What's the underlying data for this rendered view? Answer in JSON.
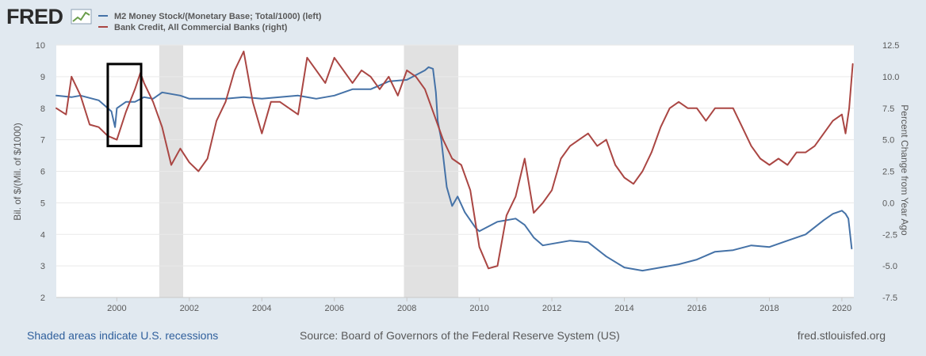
{
  "brand": {
    "name": "FRED"
  },
  "colors": {
    "background": "#e1e9f0",
    "plot_background": "#ffffff",
    "recession": "#e1e1e1",
    "grid": "#e9e9e9",
    "left_series": "#4572a7",
    "right_series": "#aa4643",
    "annotation_box": "#000000"
  },
  "footer": {
    "recessions_note": "Shaded areas indicate U.S. recessions",
    "source": "Source: Board of Governors of the Federal Reserve System (US)",
    "site": "fred.stlouisfed.org"
  },
  "chart_data": {
    "type": "line",
    "title": "",
    "legend": [
      {
        "name": "M2 Money Stock/(Monetary Base; Total/1000) (left)",
        "color": "#4572a7"
      },
      {
        "name": "Bank Credit, All Commercial Banks (right)",
        "color": "#aa4643"
      }
    ],
    "xlim": [
      1998.33,
      2020.33
    ],
    "x_ticks": [
      2000,
      2002,
      2004,
      2006,
      2008,
      2010,
      2012,
      2014,
      2016,
      2018,
      2020
    ],
    "y_left": {
      "label": "Bil. of $/(Mil. of $/1000)",
      "lim": [
        2,
        10
      ],
      "ticks": [
        2,
        3,
        4,
        5,
        6,
        7,
        8,
        9,
        10
      ],
      "tick_labels": [
        "2",
        "3",
        "4",
        "5",
        "6",
        "7",
        "8",
        "9",
        "10"
      ]
    },
    "y_right": {
      "label": "Percent Change from Year Ago",
      "lim": [
        -7.5,
        12.5
      ],
      "ticks": [
        -7.5,
        -5,
        -2.5,
        0,
        2.5,
        5,
        7.5,
        10,
        12.5
      ],
      "tick_labels": [
        "-7.5",
        "-5.0",
        "-2.5",
        "0.0",
        "2.5",
        "5.0",
        "7.5",
        "10.0",
        "12.5"
      ]
    },
    "recessions": [
      [
        2001.17,
        2001.83
      ],
      [
        2007.92,
        2009.42
      ]
    ],
    "annotation_box": {
      "x": [
        1999.75,
        2000.67
      ],
      "y_left": [
        6.8,
        9.4
      ]
    },
    "series": [
      {
        "name": "M2 Money Stock/(Monetary Base; Total/1000)",
        "axis": "left",
        "x": [
          1998.33,
          1998.75,
          1999.0,
          1999.5,
          1999.85,
          1999.95,
          2000.0,
          2000.25,
          2000.5,
          2000.75,
          2001.0,
          2001.25,
          2001.5,
          2001.75,
          2002.0,
          2002.5,
          2003.0,
          2003.5,
          2004.0,
          2004.5,
          2005.0,
          2005.5,
          2006.0,
          2006.5,
          2007.0,
          2007.5,
          2008.0,
          2008.25,
          2008.5,
          2008.6,
          2008.72,
          2008.8,
          2008.85,
          2008.95,
          2009.1,
          2009.25,
          2009.4,
          2009.6,
          2009.9,
          2010.0,
          2010.5,
          2011.0,
          2011.25,
          2011.5,
          2011.75,
          2012.0,
          2012.5,
          2013.0,
          2013.5,
          2014.0,
          2014.5,
          2015.0,
          2015.5,
          2016.0,
          2016.5,
          2017.0,
          2017.5,
          2018.0,
          2018.5,
          2019.0,
          2019.5,
          2019.75,
          2020.0,
          2020.1,
          2020.18,
          2020.27
        ],
        "values": [
          8.4,
          8.35,
          8.4,
          8.25,
          7.9,
          7.4,
          8.0,
          8.2,
          8.2,
          8.35,
          8.3,
          8.5,
          8.45,
          8.4,
          8.3,
          8.3,
          8.3,
          8.35,
          8.3,
          8.35,
          8.4,
          8.3,
          8.4,
          8.6,
          8.6,
          8.85,
          8.9,
          9.05,
          9.2,
          9.3,
          9.25,
          8.5,
          7.6,
          7.0,
          5.5,
          4.9,
          5.2,
          4.7,
          4.2,
          4.1,
          4.4,
          4.5,
          4.3,
          3.9,
          3.65,
          3.7,
          3.8,
          3.75,
          3.3,
          2.95,
          2.85,
          2.95,
          3.05,
          3.2,
          3.45,
          3.5,
          3.65,
          3.6,
          3.8,
          4.0,
          4.45,
          4.65,
          4.75,
          4.65,
          4.5,
          3.55
        ]
      },
      {
        "name": "Bank Credit, All Commercial Banks",
        "axis": "right",
        "x": [
          1998.33,
          1998.6,
          1998.75,
          1999.0,
          1999.25,
          1999.5,
          1999.75,
          2000.0,
          2000.25,
          2000.5,
          2000.65,
          2000.75,
          2001.0,
          2001.25,
          2001.5,
          2001.75,
          2002.0,
          2002.25,
          2002.5,
          2002.75,
          2003.0,
          2003.25,
          2003.5,
          2003.75,
          2004.0,
          2004.25,
          2004.5,
          2004.75,
          2005.0,
          2005.25,
          2005.5,
          2005.75,
          2006.0,
          2006.25,
          2006.5,
          2006.75,
          2007.0,
          2007.25,
          2007.5,
          2007.75,
          2008.0,
          2008.25,
          2008.5,
          2008.75,
          2009.0,
          2009.25,
          2009.5,
          2009.75,
          2010.0,
          2010.25,
          2010.5,
          2010.75,
          2011.0,
          2011.25,
          2011.5,
          2011.75,
          2012.0,
          2012.25,
          2012.5,
          2012.75,
          2013.0,
          2013.25,
          2013.5,
          2013.75,
          2014.0,
          2014.25,
          2014.5,
          2014.75,
          2015.0,
          2015.25,
          2015.5,
          2015.75,
          2016.0,
          2016.25,
          2016.5,
          2016.75,
          2017.0,
          2017.25,
          2017.5,
          2017.75,
          2018.0,
          2018.25,
          2018.5,
          2018.75,
          2019.0,
          2019.25,
          2019.5,
          2019.75,
          2020.0,
          2020.1,
          2020.2,
          2020.3
        ],
        "values": [
          7.5,
          7.0,
          10.0,
          8.5,
          6.2,
          6.0,
          5.3,
          5.0,
          7.2,
          9.0,
          10.3,
          9.5,
          8.0,
          6.0,
          3.0,
          4.3,
          3.2,
          2.5,
          3.5,
          6.5,
          8.0,
          10.5,
          12.0,
          8.0,
          5.5,
          8.0,
          8.0,
          7.5,
          7.0,
          11.5,
          10.5,
          9.5,
          11.5,
          10.5,
          9.5,
          10.5,
          10.0,
          9.0,
          10.0,
          8.5,
          10.5,
          10.0,
          9.0,
          7.0,
          5.0,
          3.5,
          3.0,
          1.0,
          -3.5,
          -5.2,
          -5.0,
          -1.0,
          0.5,
          3.5,
          -0.8,
          0.0,
          1.0,
          3.5,
          4.5,
          5.0,
          5.5,
          4.5,
          5.0,
          3.0,
          2.0,
          1.5,
          2.5,
          4.0,
          6.0,
          7.5,
          8.0,
          7.5,
          7.5,
          6.5,
          7.5,
          7.5,
          7.5,
          6.0,
          4.5,
          3.5,
          3.0,
          3.5,
          3.0,
          4.0,
          4.0,
          4.5,
          5.5,
          6.5,
          7.0,
          5.5,
          7.5,
          11.0
        ]
      }
    ]
  }
}
